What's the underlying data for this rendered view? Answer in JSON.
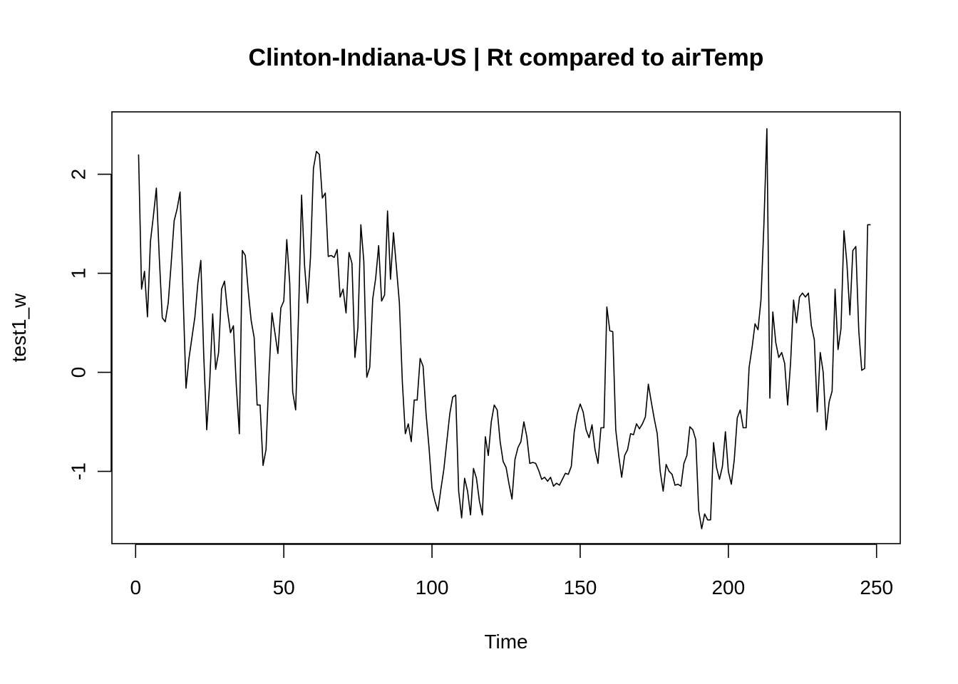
{
  "chart_data": {
    "type": "line",
    "title": "Clinton-Indiana-US | Rt compared to airTemp",
    "xlabel": "Time",
    "ylabel": "test1_w",
    "xlim": [
      -8,
      258
    ],
    "ylim": [
      -1.73,
      2.63
    ],
    "x_ticks": [
      0,
      50,
      100,
      150,
      200,
      250
    ],
    "x_tick_labels": [
      "0",
      "50",
      "100",
      "150",
      "200",
      "250"
    ],
    "y_ticks": [
      -1,
      0,
      1,
      2
    ],
    "y_tick_labels": [
      "-1",
      "0",
      "1",
      "2"
    ],
    "grid": false,
    "line_color": "#000000",
    "series": [
      {
        "x_start": 1,
        "values": [
          2.2,
          0.84,
          1.02,
          0.56,
          1.32,
          1.58,
          1.86,
          1.15,
          0.55,
          0.51,
          0.7,
          1.1,
          1.53,
          1.65,
          1.82,
          0.8,
          -0.16,
          0.14,
          0.35,
          0.56,
          0.9,
          1.13,
          0.16,
          -0.58,
          -0.1,
          0.59,
          0.03,
          0.2,
          0.84,
          0.92,
          0.62,
          0.4,
          0.47,
          -0.15,
          -0.62,
          1.23,
          1.18,
          0.82,
          0.52,
          0.35,
          -0.33,
          -0.33,
          -0.94,
          -0.78,
          -0.03,
          0.6,
          0.4,
          0.19,
          0.65,
          0.72,
          1.34,
          0.9,
          -0.2,
          -0.38,
          0.62,
          1.79,
          1.08,
          0.7,
          1.16,
          2.06,
          2.23,
          2.2,
          1.76,
          1.81,
          1.17,
          1.18,
          1.16,
          1.24,
          0.76,
          0.84,
          0.6,
          1.21,
          1.1,
          0.15,
          0.45,
          1.49,
          1.12,
          -0.05,
          0.05,
          0.74,
          0.95,
          1.28,
          0.72,
          0.78,
          1.63,
          0.94,
          1.41,
          1.06,
          0.7,
          -0.1,
          -0.62,
          -0.52,
          -0.7,
          -0.28,
          -0.28,
          0.14,
          0.06,
          -0.42,
          -0.76,
          -1.17,
          -1.3,
          -1.4,
          -1.18,
          -0.98,
          -0.7,
          -0.42,
          -0.25,
          -0.23,
          -1.2,
          -1.47,
          -1.07,
          -1.2,
          -1.44,
          -0.97,
          -1.07,
          -1.3,
          -1.44,
          -0.65,
          -0.84,
          -0.5,
          -0.33,
          -0.38,
          -0.7,
          -0.9,
          -0.96,
          -1.13,
          -1.28,
          -0.88,
          -0.76,
          -0.7,
          -0.5,
          -0.65,
          -0.92,
          -0.91,
          -0.92,
          -0.99,
          -1.08,
          -1.06,
          -1.1,
          -1.06,
          -1.15,
          -1.12,
          -1.14,
          -1.08,
          -1.02,
          -1.03,
          -0.95,
          -0.6,
          -0.42,
          -0.32,
          -0.4,
          -0.58,
          -0.66,
          -0.53,
          -0.78,
          -0.92,
          -0.56,
          -0.56,
          0.66,
          0.42,
          0.41,
          -0.58,
          -0.84,
          -1.06,
          -0.84,
          -0.78,
          -0.62,
          -0.63,
          -0.52,
          -0.57,
          -0.52,
          -0.45,
          -0.12,
          -0.3,
          -0.47,
          -0.62,
          -1.0,
          -1.2,
          -0.93,
          -1.0,
          -1.03,
          -1.14,
          -1.13,
          -1.15,
          -0.92,
          -0.84,
          -0.55,
          -0.58,
          -0.68,
          -1.4,
          -1.58,
          -1.43,
          -1.49,
          -1.49,
          -0.71,
          -0.96,
          -1.08,
          -0.95,
          -0.6,
          -1.0,
          -1.13,
          -0.88,
          -0.46,
          -0.38,
          -0.56,
          -0.56,
          0.05,
          0.25,
          0.49,
          0.43,
          0.73,
          1.5,
          2.46,
          -0.26,
          0.61,
          0.3,
          0.15,
          0.2,
          0.09,
          -0.33,
          0.1,
          0.73,
          0.5,
          0.76,
          0.8,
          0.76,
          0.8,
          0.47,
          0.33,
          -0.4,
          0.2,
          0.0,
          -0.58,
          -0.3,
          -0.19,
          0.84,
          0.23,
          0.44,
          1.43,
          1.1,
          0.58,
          1.23,
          1.27,
          0.42,
          0.02,
          0.04,
          1.49,
          1.49
        ]
      }
    ]
  }
}
